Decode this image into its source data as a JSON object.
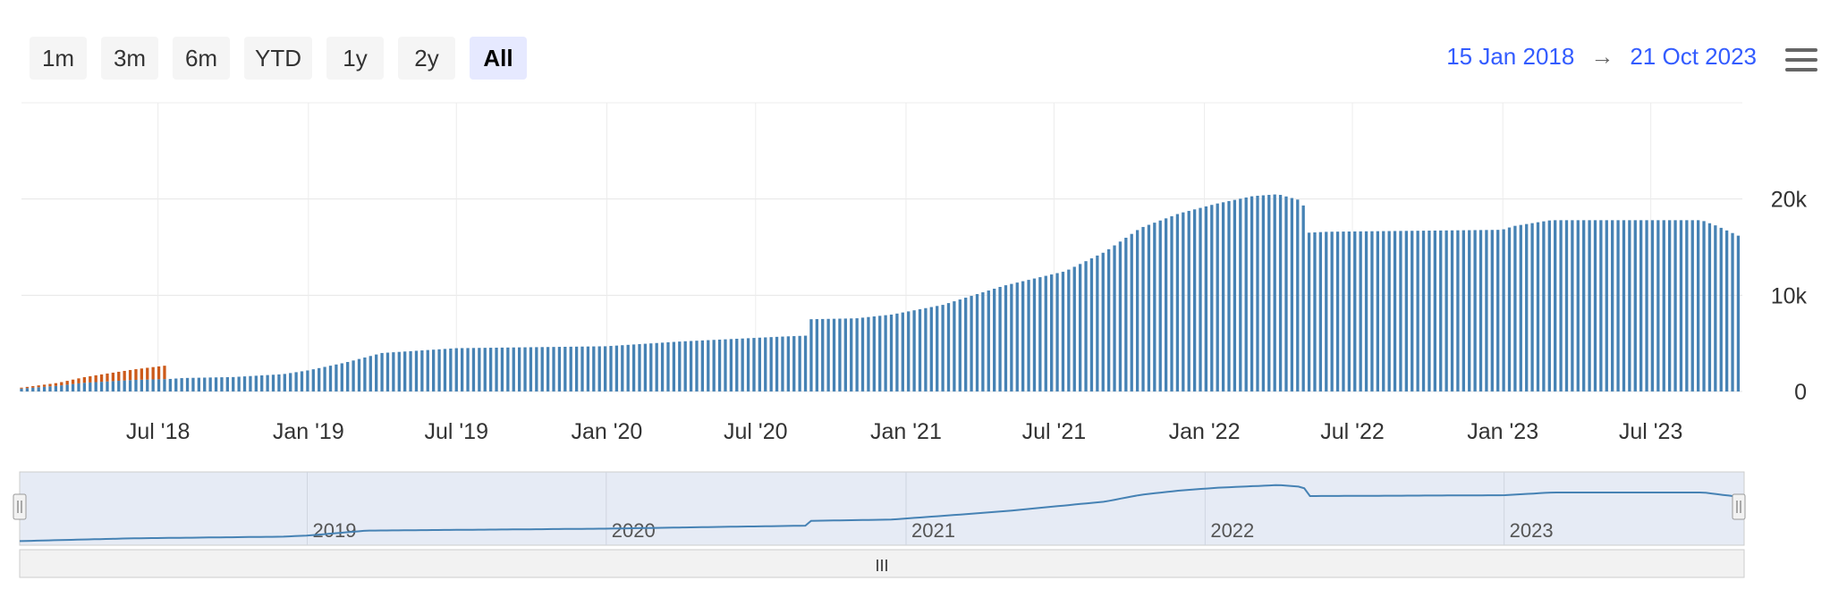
{
  "range_selector": {
    "buttons": [
      {
        "label": "1m",
        "active": false
      },
      {
        "label": "3m",
        "active": false
      },
      {
        "label": "6m",
        "active": false
      },
      {
        "label": "YTD",
        "active": false
      },
      {
        "label": "1y",
        "active": false
      },
      {
        "label": "2y",
        "active": false
      },
      {
        "label": "All",
        "active": true
      }
    ]
  },
  "date_range": {
    "from": "15 Jan 2018",
    "arrow": "→",
    "to": "21 Oct 2023"
  },
  "menu": {
    "icon": "hamburger-menu-icon"
  },
  "navigator": {
    "handle_label": "III",
    "year_labels": [
      "2019",
      "2020",
      "2021",
      "2022",
      "2023"
    ]
  },
  "colors": {
    "primary": "#4682b4",
    "secondary": "#cc5a1a",
    "accent": "#335cff"
  },
  "chart_data": {
    "type": "bar",
    "stacked": true,
    "x_range": [
      "2018-01-15",
      "2023-10-21"
    ],
    "ylim": [
      0,
      30000
    ],
    "y_ticks": [
      0,
      10000,
      20000
    ],
    "y_tick_labels": [
      "0",
      "10k",
      "20k"
    ],
    "y_axis_position": "right",
    "x_ticks": [
      "2018-07-01",
      "2019-01-01",
      "2019-07-01",
      "2020-01-01",
      "2020-07-01",
      "2021-01-01",
      "2021-07-01",
      "2022-01-01",
      "2022-07-01",
      "2023-01-01",
      "2023-07-01"
    ],
    "x_tick_labels": [
      "Jul '18",
      "Jan '19",
      "Jul '19",
      "Jan '20",
      "Jul '20",
      "Jan '21",
      "Jul '21",
      "Jan '22",
      "Jul '22",
      "Jan '23",
      "Jul '23"
    ],
    "grid": true,
    "legend": "none",
    "series": [
      {
        "color": "#4682b4",
        "points": [
          [
            "2018-01-15",
            300
          ],
          [
            "2018-03-01",
            600
          ],
          [
            "2018-04-01",
            900
          ],
          [
            "2018-06-01",
            1200
          ],
          [
            "2018-07-15",
            1300
          ],
          [
            "2018-08-01",
            1400
          ],
          [
            "2018-10-01",
            1500
          ],
          [
            "2018-12-01",
            1800
          ],
          [
            "2019-01-01",
            2200
          ],
          [
            "2019-02-15",
            3000
          ],
          [
            "2019-04-01",
            4000
          ],
          [
            "2019-07-01",
            4500
          ],
          [
            "2019-12-31",
            4700
          ],
          [
            "2020-04-01",
            5200
          ],
          [
            "2020-08-01",
            5700
          ],
          [
            "2020-08-31",
            5800
          ],
          [
            "2020-09-01",
            7500
          ],
          [
            "2020-11-01",
            7600
          ],
          [
            "2020-12-15",
            8000
          ],
          [
            "2021-02-15",
            9000
          ],
          [
            "2021-05-01",
            11000
          ],
          [
            "2021-07-15",
            12500
          ],
          [
            "2021-09-01",
            14500
          ],
          [
            "2021-10-15",
            17000
          ],
          [
            "2021-12-01",
            18500
          ],
          [
            "2022-01-15",
            19500
          ],
          [
            "2022-03-01",
            20300
          ],
          [
            "2022-04-01",
            20500
          ],
          [
            "2022-05-01",
            19800
          ],
          [
            "2022-05-08",
            16500
          ],
          [
            "2022-06-01",
            16600
          ],
          [
            "2022-12-31",
            16800
          ],
          [
            "2023-01-15",
            17200
          ],
          [
            "2023-03-01",
            17800
          ],
          [
            "2023-09-01",
            17800
          ],
          [
            "2023-09-20",
            17200
          ],
          [
            "2023-10-21",
            16000
          ]
        ]
      },
      {
        "color": "#cc5a1a",
        "points": [
          [
            "2018-01-15",
            100
          ],
          [
            "2018-03-01",
            300
          ],
          [
            "2018-04-15",
            700
          ],
          [
            "2018-06-15",
            1200
          ],
          [
            "2018-07-10",
            1400
          ],
          [
            "2018-07-15",
            0
          ],
          [
            "2023-10-21",
            0
          ]
        ]
      }
    ],
    "navigator_series": [
      [
        "2018-01-15",
        200
      ],
      [
        "2018-06-01",
        1200
      ],
      [
        "2018-12-01",
        1800
      ],
      [
        "2019-01-01",
        2200
      ],
      [
        "2019-03-15",
        4000
      ],
      [
        "2019-12-31",
        4700
      ],
      [
        "2020-08-31",
        5800
      ],
      [
        "2020-09-01",
        7500
      ],
      [
        "2020-12-15",
        8000
      ],
      [
        "2021-05-01",
        11000
      ],
      [
        "2021-09-01",
        14500
      ],
      [
        "2021-10-15",
        17000
      ],
      [
        "2021-12-01",
        18500
      ],
      [
        "2022-01-15",
        19500
      ],
      [
        "2022-04-01",
        20500
      ],
      [
        "2022-05-01",
        19800
      ],
      [
        "2022-05-08",
        16500
      ],
      [
        "2022-12-31",
        16800
      ],
      [
        "2023-03-01",
        17800
      ],
      [
        "2023-09-01",
        17800
      ],
      [
        "2023-10-21",
        16000
      ]
    ]
  }
}
